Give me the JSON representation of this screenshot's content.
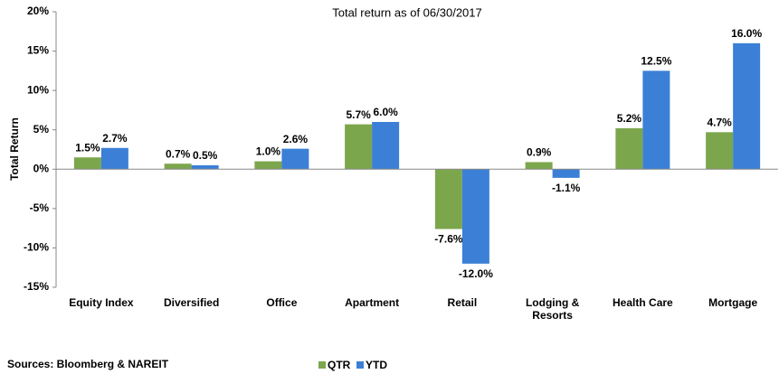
{
  "chart_data": {
    "type": "bar",
    "title": "Total return as of 06/30/2017",
    "y_label": "Total Return",
    "source": "Sources: Bloomberg & NAREIT",
    "categories": [
      "Equity Index",
      "Diversified",
      "Office",
      "Apartment",
      "Retail",
      "Lodging & Resorts",
      "Health Care",
      "Mortgage"
    ],
    "series": [
      {
        "name": "QTR",
        "color": "#7ca64c",
        "values": [
          1.5,
          0.7,
          1.0,
          5.7,
          -7.6,
          0.9,
          5.2,
          4.7
        ],
        "value_labels": [
          "1.5%",
          "0.7%",
          "1.0%",
          "5.7%",
          "-7.6%",
          "0.9%",
          "5.2%",
          "4.7%"
        ]
      },
      {
        "name": "YTD",
        "color": "#3b80d6",
        "values": [
          2.7,
          0.5,
          2.6,
          6.0,
          -12.0,
          -1.1,
          12.5,
          16.0
        ],
        "value_labels": [
          "2.7%",
          "0.5%",
          "2.6%",
          "6.0%",
          "-12.0%",
          "-1.1%",
          "12.5%",
          "16.0%"
        ]
      }
    ],
    "ylim": [
      -15,
      20
    ],
    "yticks": [
      {
        "value": -15,
        "label": "-15%"
      },
      {
        "value": -10,
        "label": "-10%"
      },
      {
        "value": -5,
        "label": "-5%"
      },
      {
        "value": 0,
        "label": "0%"
      },
      {
        "value": 5,
        "label": "5%"
      },
      {
        "value": 10,
        "label": "10%"
      },
      {
        "value": 15,
        "label": "15%"
      },
      {
        "value": 20,
        "label": "20%"
      }
    ],
    "grid": false,
    "legend": "bottom"
  }
}
